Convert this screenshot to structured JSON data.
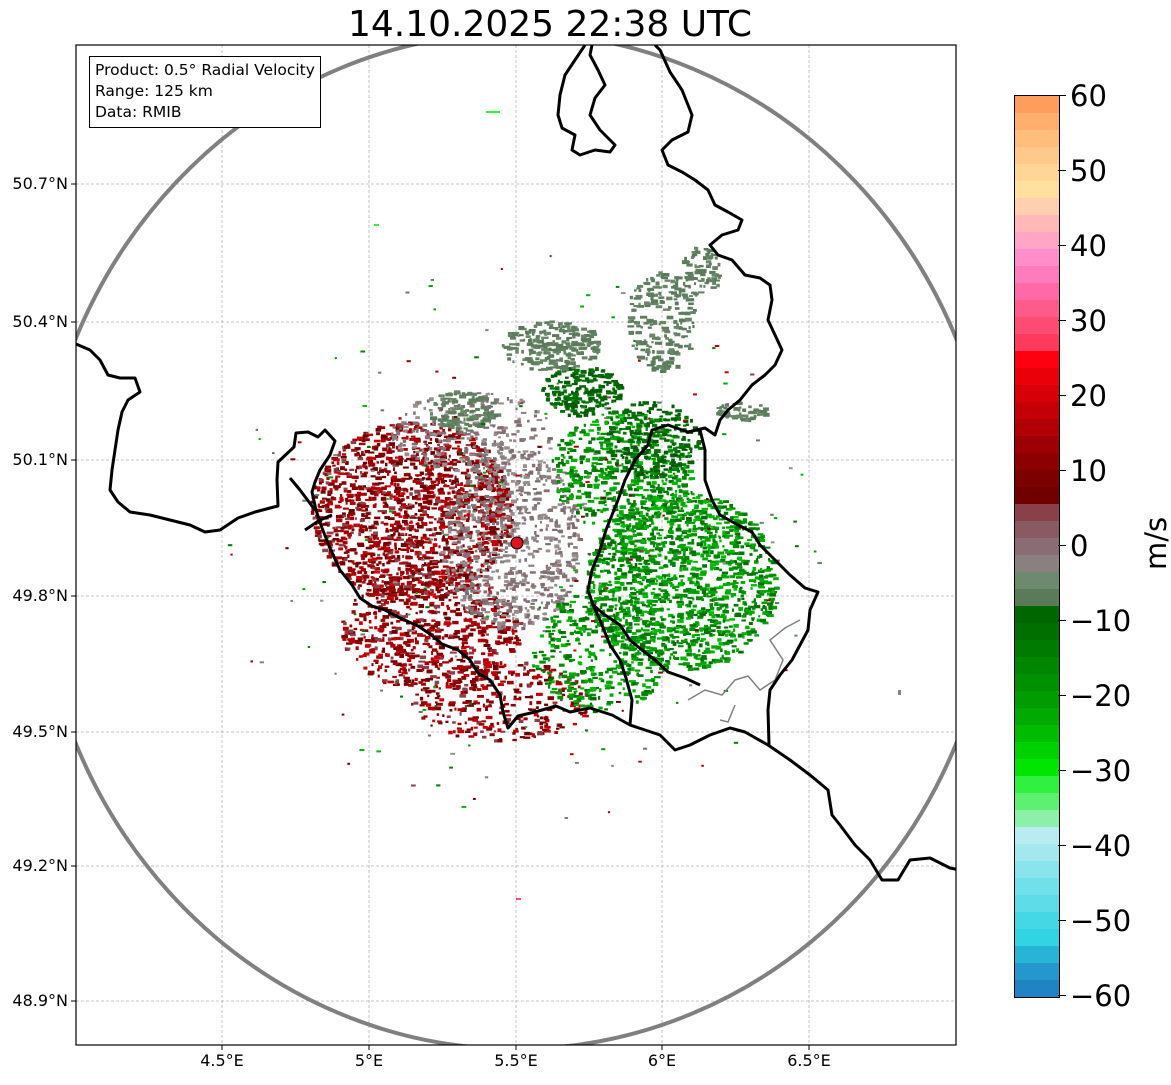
{
  "title": "14.10.2025 22:38 UTC",
  "info": {
    "product": "Product: 0.5° Radial Velocity",
    "range": "Range: 125 km",
    "data": "Data: RMIB"
  },
  "map": {
    "lat_ticks": [
      "50.7°N",
      "50.4°N",
      "50.1°N",
      "49.8°N",
      "49.5°N",
      "49.2°N",
      "48.9°N"
    ],
    "lon_ticks": [
      "4.5°E",
      "5°E",
      "5.5°E",
      "6°E",
      "6.5°E"
    ],
    "radar_site": {
      "lon": 5.505,
      "lat": 49.914
    },
    "range_ring_km": 125
  },
  "colorbar": {
    "unit": "m/s",
    "ticks": [
      "60",
      "50",
      "40",
      "30",
      "20",
      "10",
      "0",
      "−10",
      "−20",
      "−30",
      "−40",
      "−50",
      "−60"
    ],
    "range": [
      -60,
      60
    ]
  },
  "colors": {
    "border": "#000000",
    "ring": "#808080",
    "site_marker": "#e0141e",
    "grid": "#b0b0b0"
  }
}
